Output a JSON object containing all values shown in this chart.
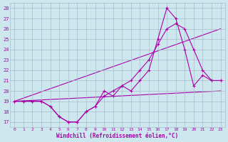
{
  "bg_color": "#cce8ee",
  "line_color": "#aa00aa",
  "grid_color": "#aabbcc",
  "xlabel": "Windchill (Refroidissement éolien,°C)",
  "xlabel_color": "#aa00aa",
  "xlim": [
    -0.5,
    23.5
  ],
  "ylim": [
    16.5,
    28.5
  ],
  "yticks": [
    17,
    18,
    19,
    20,
    21,
    22,
    23,
    24,
    25,
    26,
    27,
    28
  ],
  "xticks": [
    0,
    1,
    2,
    3,
    4,
    5,
    6,
    7,
    8,
    9,
    10,
    11,
    12,
    13,
    14,
    15,
    16,
    17,
    18,
    19,
    20,
    21,
    22,
    23
  ],
  "series1_x": [
    0,
    1,
    2,
    3,
    4,
    5,
    6,
    7,
    8,
    9,
    10,
    11,
    12,
    13,
    14,
    15,
    16,
    17,
    18,
    19,
    20,
    21,
    22,
    23
  ],
  "series1_y": [
    19,
    19,
    19,
    19,
    18.5,
    17.5,
    17,
    17,
    18,
    18.5,
    19.5,
    20,
    20.5,
    21,
    22,
    23,
    24.5,
    26,
    26.5,
    26,
    24,
    22,
    21,
    21
  ],
  "series2_x": [
    0,
    1,
    2,
    3,
    4,
    5,
    6,
    7,
    8,
    9,
    10,
    11,
    12,
    13,
    14,
    15,
    16,
    17,
    18,
    19,
    20,
    21,
    22,
    23
  ],
  "series2_y": [
    19,
    19,
    19,
    19,
    18.5,
    17.5,
    17.0,
    17.0,
    18,
    18.5,
    20.0,
    19.5,
    20.5,
    20,
    21,
    22,
    25,
    28,
    27,
    24,
    20.5,
    21.5,
    21,
    21
  ],
  "series3_x": [
    0,
    23
  ],
  "series3_y": [
    19,
    20.0
  ],
  "series4_x": [
    0,
    23
  ],
  "series4_y": [
    19,
    26.0
  ]
}
